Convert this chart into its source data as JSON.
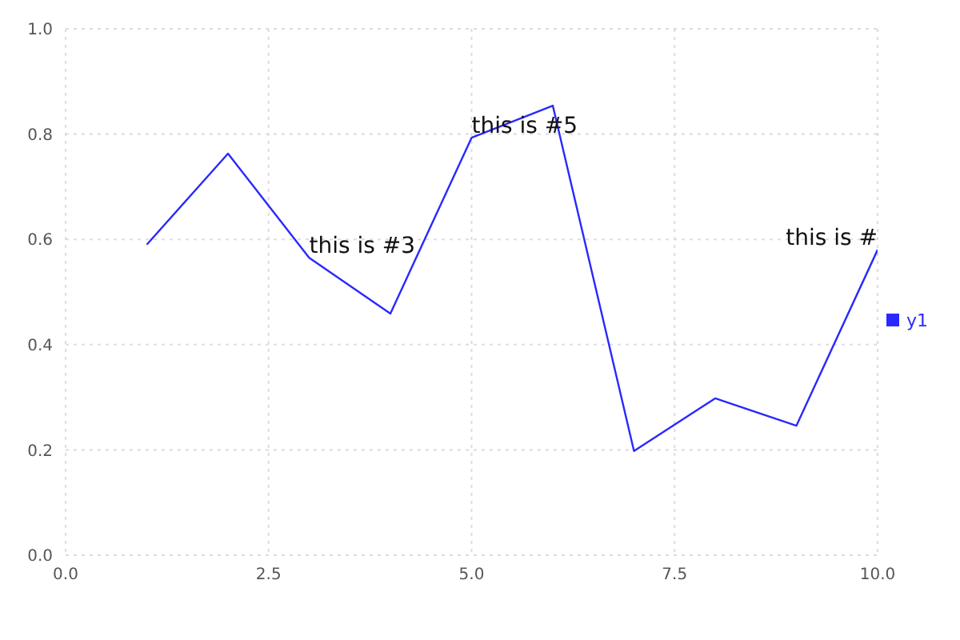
{
  "chart_data": {
    "type": "line",
    "x": [
      1,
      2,
      3,
      4,
      5,
      6,
      7,
      8,
      9,
      10
    ],
    "series": [
      {
        "name": "y1",
        "color": "#2929ff",
        "values": [
          0.59,
          0.763,
          0.565,
          0.459,
          0.793,
          0.854,
          0.198,
          0.298,
          0.246,
          0.58
        ]
      }
    ],
    "xlim": [
      0,
      10
    ],
    "xticks": [
      {
        "value": 0,
        "label": "0.0"
      },
      {
        "value": 2.5,
        "label": "2.5"
      },
      {
        "value": 5,
        "label": "5.0"
      },
      {
        "value": 7.5,
        "label": "7.5"
      },
      {
        "value": 10,
        "label": "10.0"
      }
    ],
    "ylim": [
      0,
      1
    ],
    "yticks": [
      {
        "value": 0,
        "label": "0.0"
      },
      {
        "value": 0.2,
        "label": "0.2"
      },
      {
        "value": 0.4,
        "label": "0.4"
      },
      {
        "value": 0.6,
        "label": "0.6"
      },
      {
        "value": 0.8,
        "label": "0.8"
      },
      {
        "value": 1,
        "label": "1.0"
      }
    ],
    "annotations": [
      {
        "text": "this is #3",
        "x": 3,
        "y": 0.565
      },
      {
        "text": "this is #5",
        "x": 5,
        "y": 0.793
      },
      {
        "text": "this is #",
        "x": 10,
        "y": 0.58
      }
    ],
    "grid": true,
    "legend": "right",
    "marker": "none"
  }
}
